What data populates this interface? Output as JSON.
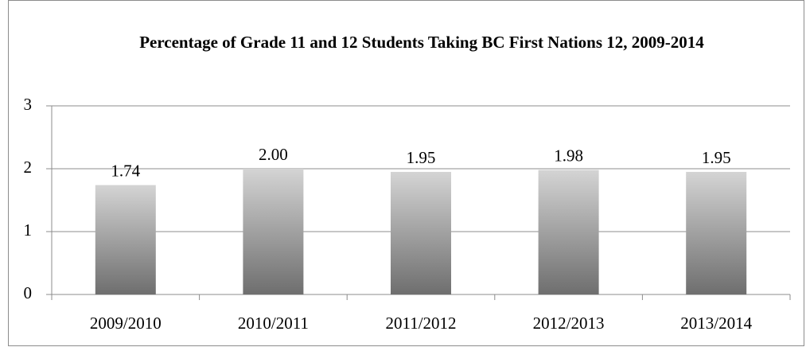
{
  "chart_data": {
    "type": "bar",
    "title": "Percentage of Grade 11 and 12 Students Taking BC First Nations 12, 2009-2014",
    "categories": [
      "2009/2010",
      "2010/2011",
      "2011/2012",
      "2012/2013",
      "2013/2014"
    ],
    "values": [
      1.74,
      2,
      1.95,
      1.98,
      1.95
    ],
    "value_labels": [
      "1.74",
      "2.00",
      "1.95",
      "1.98",
      "1.95"
    ],
    "ylim": [
      0,
      3
    ],
    "yticks": [
      0,
      1,
      2,
      3
    ],
    "grid": true,
    "color": [
      "#d4d4d4",
      "#6e6e6e"
    ]
  }
}
